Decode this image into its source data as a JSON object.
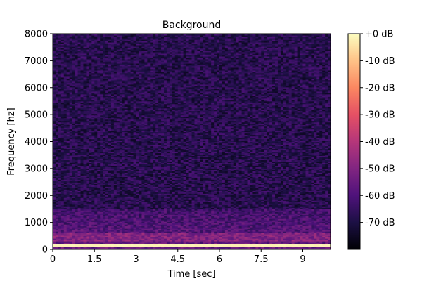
{
  "chart_data": {
    "type": "heatmap",
    "title": "Background",
    "xlabel": "Time [sec]",
    "ylabel": "Frequency [hz]",
    "xlim": [
      0,
      10
    ],
    "ylim": [
      0,
      8000
    ],
    "x_ticks": [
      0,
      1.5,
      3,
      4.5,
      6,
      7.5,
      9
    ],
    "x_tick_labels": [
      "0",
      "1.5",
      "3",
      "4.5",
      "6",
      "7.5",
      "9"
    ],
    "y_ticks": [
      0,
      1000,
      2000,
      3000,
      4000,
      5000,
      6000,
      7000,
      8000
    ],
    "y_tick_labels": [
      "0",
      "1000",
      "2000",
      "3000",
      "4000",
      "5000",
      "6000",
      "7000",
      "8000"
    ],
    "colorbar": {
      "ticks": [
        0,
        -10,
        -20,
        -30,
        -40,
        -50,
        -60,
        -70
      ],
      "tick_labels": [
        "+0 dB",
        "-10 dB",
        "-20 dB",
        "-30 dB",
        "-40 dB",
        "-50 dB",
        "-60 dB",
        "-70 dB"
      ],
      "range": [
        -80,
        0
      ],
      "colormap": "magma"
    },
    "features": [
      {
        "frequency_hz": 150,
        "level_db": -2,
        "description": "strong constant tone across full duration"
      },
      {
        "frequency_range_hz": [
          300,
          600
        ],
        "level_db": -50,
        "description": "faint harmonic bands"
      },
      {
        "frequency_range_hz": [
          0,
          1500
        ],
        "level_db": -55,
        "description": "elevated low-frequency noise"
      },
      {
        "frequency_range_hz": [
          1500,
          8000
        ],
        "level_db": -68,
        "description": "background noise floor"
      }
    ]
  }
}
